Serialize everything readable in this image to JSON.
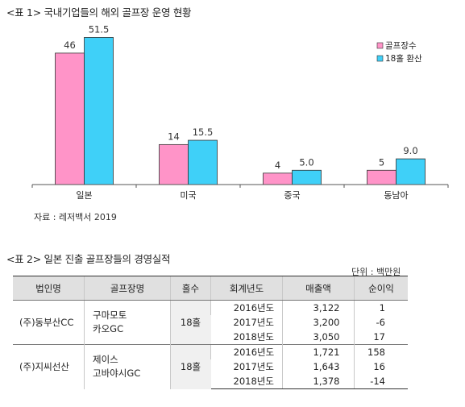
{
  "table1": {
    "title": "<표 1> 국내기업들의 해외 골프장 운영 현황",
    "source": "자료 : 레저백서 2019"
  },
  "chart_data": {
    "type": "bar",
    "categories": [
      "일본",
      "미국",
      "중국",
      "동남아"
    ],
    "series": [
      {
        "name": "골프장수",
        "color": "#ff94c8",
        "values": [
          46,
          14,
          4,
          5
        ],
        "labels": [
          "46",
          "14",
          "4",
          "5"
        ]
      },
      {
        "name": "18홀 환산",
        "color": "#3fd0f8",
        "values": [
          51.5,
          15.5,
          5.0,
          9.0
        ],
        "labels": [
          "51.5",
          "15.5",
          "5.0",
          "9.0"
        ]
      }
    ],
    "ylim": [
      0,
      55
    ],
    "grid": false,
    "legend": "top-right"
  },
  "table2": {
    "title": "<표 2> 일본 진출 골프장들의 경영실적",
    "unit": "단위 : 백만원",
    "headers": [
      "법인명",
      "골프장명",
      "홀수",
      "회계년도",
      "매출액",
      "순이익"
    ],
    "groups": [
      {
        "corp": "(주)동부산CC",
        "course": [
          "구마모토",
          "카오GC"
        ],
        "holes": "18홀",
        "rows": [
          {
            "year": "2016년도",
            "sales": "3,122",
            "profit": "1"
          },
          {
            "year": "2017년도",
            "sales": "3,200",
            "profit": "-6"
          },
          {
            "year": "2018년도",
            "sales": "3,050",
            "profit": "17"
          }
        ]
      },
      {
        "corp": "(주)지씨선산",
        "course": [
          "제이스",
          "고바야시GC"
        ],
        "holes": "18홀",
        "rows": [
          {
            "year": "2016년도",
            "sales": "1,721",
            "profit": "158"
          },
          {
            "year": "2017년도",
            "sales": "1,643",
            "profit": "16"
          },
          {
            "year": "2018년도",
            "sales": "1,378",
            "profit": "-14"
          }
        ]
      }
    ]
  }
}
